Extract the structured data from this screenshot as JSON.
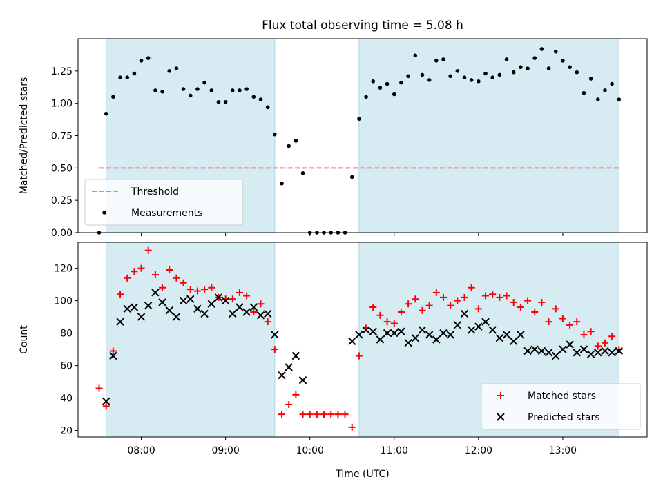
{
  "figure": {
    "title": "Flux total observing time = 5.08 h",
    "xlabel": "Time (UTC)"
  },
  "colors": {
    "shade": "#add8e6",
    "threshold": "#f08080",
    "matched": "#ff0000",
    "predicted": "#000000",
    "measurements": "#000000"
  },
  "chart_data": [
    {
      "type": "scatter",
      "panel": "top",
      "ylabel": "Matched/Predicted stars",
      "xlim": [
        "07:15",
        "14:00"
      ],
      "ylim": [
        0,
        1.5
      ],
      "yticks": [
        0.0,
        0.25,
        0.5,
        0.75,
        1.0,
        1.25
      ],
      "ytick_labels": [
        "0.00",
        "0.25",
        "0.50",
        "0.75",
        "1.00",
        "1.25"
      ],
      "xticks": [
        "08:00",
        "09:00",
        "10:00",
        "11:00",
        "12:00",
        "13:00"
      ],
      "shaded_intervals": [
        [
          "07:35",
          "09:35"
        ],
        [
          "10:35",
          "13:40"
        ]
      ],
      "threshold": {
        "name": "Threshold",
        "value": 0.5,
        "x_range": [
          "07:30",
          "13:40"
        ]
      },
      "legend": {
        "position": "lower-left",
        "entries": [
          "Threshold",
          "Measurements"
        ]
      },
      "series": [
        {
          "name": "Measurements",
          "x": [
            "07:30",
            "07:35",
            "07:40",
            "07:45",
            "07:50",
            "07:55",
            "08:00",
            "08:05",
            "08:10",
            "08:15",
            "08:20",
            "08:25",
            "08:30",
            "08:35",
            "08:40",
            "08:45",
            "08:50",
            "08:55",
            "09:00",
            "09:05",
            "09:10",
            "09:15",
            "09:20",
            "09:25",
            "09:30",
            "09:35",
            "09:40",
            "09:45",
            "09:50",
            "09:55",
            "10:00",
            "10:05",
            "10:10",
            "10:15",
            "10:20",
            "10:25",
            "10:30",
            "10:35",
            "10:40",
            "10:45",
            "10:50",
            "10:55",
            "11:00",
            "11:05",
            "11:10",
            "11:15",
            "11:20",
            "11:25",
            "11:30",
            "11:35",
            "11:40",
            "11:45",
            "11:50",
            "11:55",
            "12:00",
            "12:05",
            "12:10",
            "12:15",
            "12:20",
            "12:25",
            "12:30",
            "12:35",
            "12:40",
            "12:45",
            "12:50",
            "12:55",
            "13:00",
            "13:05",
            "13:10",
            "13:15",
            "13:20",
            "13:25",
            "13:30",
            "13:35",
            "13:40"
          ],
          "y": [
            0.0,
            0.92,
            1.05,
            1.2,
            1.2,
            1.23,
            1.33,
            1.35,
            1.1,
            1.09,
            1.25,
            1.27,
            1.11,
            1.06,
            1.11,
            1.16,
            1.1,
            1.01,
            1.01,
            1.1,
            1.1,
            1.11,
            1.05,
            1.03,
            0.97,
            0.76,
            0.38,
            0.67,
            0.71,
            0.46,
            0.0,
            0.0,
            0.0,
            0.0,
            0.0,
            0.0,
            0.43,
            0.88,
            1.05,
            1.17,
            1.12,
            1.15,
            1.07,
            1.16,
            1.21,
            1.37,
            1.22,
            1.18,
            1.33,
            1.34,
            1.21,
            1.25,
            1.2,
            1.18,
            1.17,
            1.23,
            1.2,
            1.22,
            1.34,
            1.24,
            1.28,
            1.27,
            1.35,
            1.42,
            1.27,
            1.4,
            1.33,
            1.28,
            1.24,
            1.08,
            1.19,
            1.03,
            1.1,
            1.15,
            1.03
          ]
        }
      ]
    },
    {
      "type": "scatter",
      "panel": "bottom",
      "ylabel": "Count",
      "xlim": [
        "07:15",
        "14:00"
      ],
      "ylim": [
        16,
        136
      ],
      "yticks": [
        20,
        40,
        60,
        80,
        100,
        120
      ],
      "ytick_labels": [
        "20",
        "40",
        "60",
        "80",
        "100",
        "120"
      ],
      "xticks": [
        "08:00",
        "09:00",
        "10:00",
        "11:00",
        "12:00",
        "13:00"
      ],
      "xtick_labels": [
        "08:00",
        "09:00",
        "10:00",
        "11:00",
        "12:00",
        "13:00"
      ],
      "shaded_intervals": [
        [
          "07:35",
          "09:35"
        ],
        [
          "10:35",
          "13:40"
        ]
      ],
      "legend": {
        "position": "lower-right",
        "entries": [
          "Matched stars",
          "Predicted stars"
        ]
      },
      "series": [
        {
          "name": "Matched stars",
          "marker": "plus",
          "x": [
            "07:30",
            "07:35",
            "07:40",
            "07:45",
            "07:50",
            "07:55",
            "08:00",
            "08:05",
            "08:10",
            "08:15",
            "08:20",
            "08:25",
            "08:30",
            "08:35",
            "08:40",
            "08:45",
            "08:50",
            "08:55",
            "09:00",
            "09:05",
            "09:10",
            "09:15",
            "09:20",
            "09:25",
            "09:30",
            "09:35",
            "09:40",
            "09:45",
            "09:50",
            "09:55",
            "10:00",
            "10:05",
            "10:10",
            "10:15",
            "10:20",
            "10:25",
            "10:30",
            "10:35",
            "10:40",
            "10:45",
            "10:50",
            "10:55",
            "11:00",
            "11:05",
            "11:10",
            "11:15",
            "11:20",
            "11:25",
            "11:30",
            "11:35",
            "11:40",
            "11:45",
            "11:50",
            "11:55",
            "12:00",
            "12:05",
            "12:10",
            "12:15",
            "12:20",
            "12:25",
            "12:30",
            "12:35",
            "12:40",
            "12:45",
            "12:50",
            "12:55",
            "13:00",
            "13:05",
            "13:10",
            "13:15",
            "13:20",
            "13:25",
            "13:30",
            "13:35",
            "13:40"
          ],
          "y": [
            46,
            35,
            69,
            104,
            114,
            118,
            120,
            131,
            116,
            108,
            119,
            114,
            111,
            107,
            106,
            107,
            108,
            102,
            101,
            101,
            105,
            103,
            93,
            98,
            87,
            70,
            30,
            36,
            42,
            30,
            30,
            30,
            30,
            30,
            30,
            30,
            22,
            66,
            83,
            96,
            91,
            87,
            86,
            93,
            98,
            101,
            94,
            97,
            105,
            102,
            97,
            100,
            102,
            108,
            95,
            103,
            104,
            102,
            103,
            99,
            96,
            100,
            93,
            99,
            87,
            95,
            89,
            85,
            87,
            79,
            81,
            72,
            74,
            78,
            70
          ]
        },
        {
          "name": "Predicted stars",
          "marker": "x",
          "x": [
            "07:35",
            "07:40",
            "07:45",
            "07:50",
            "07:55",
            "08:00",
            "08:05",
            "08:10",
            "08:15",
            "08:20",
            "08:25",
            "08:30",
            "08:35",
            "08:40",
            "08:45",
            "08:50",
            "08:55",
            "09:00",
            "09:05",
            "09:10",
            "09:15",
            "09:20",
            "09:25",
            "09:30",
            "09:35",
            "09:40",
            "09:45",
            "09:50",
            "09:55",
            "10:30",
            "10:35",
            "10:40",
            "10:45",
            "10:50",
            "10:55",
            "11:00",
            "11:05",
            "11:10",
            "11:15",
            "11:20",
            "11:25",
            "11:30",
            "11:35",
            "11:40",
            "11:45",
            "11:50",
            "11:55",
            "12:00",
            "12:05",
            "12:10",
            "12:15",
            "12:20",
            "12:25",
            "12:30",
            "12:35",
            "12:40",
            "12:45",
            "12:50",
            "12:55",
            "13:00",
            "13:05",
            "13:10",
            "13:15",
            "13:20",
            "13:25",
            "13:30",
            "13:35",
            "13:40"
          ],
          "y": [
            38,
            66,
            87,
            95,
            96,
            90,
            97,
            105,
            99,
            94,
            90,
            100,
            101,
            95,
            92,
            98,
            102,
            100,
            92,
            96,
            93,
            96,
            91,
            92,
            79,
            54,
            59,
            66,
            51,
            75,
            79,
            82,
            81,
            76,
            80,
            80,
            81,
            74,
            77,
            82,
            79,
            76,
            80,
            79,
            85,
            92,
            82,
            84,
            87,
            82,
            77,
            79,
            75,
            79,
            69,
            70,
            69,
            68,
            66,
            70,
            73,
            68,
            70,
            67,
            68,
            69,
            68,
            69
          ]
        }
      ]
    }
  ]
}
